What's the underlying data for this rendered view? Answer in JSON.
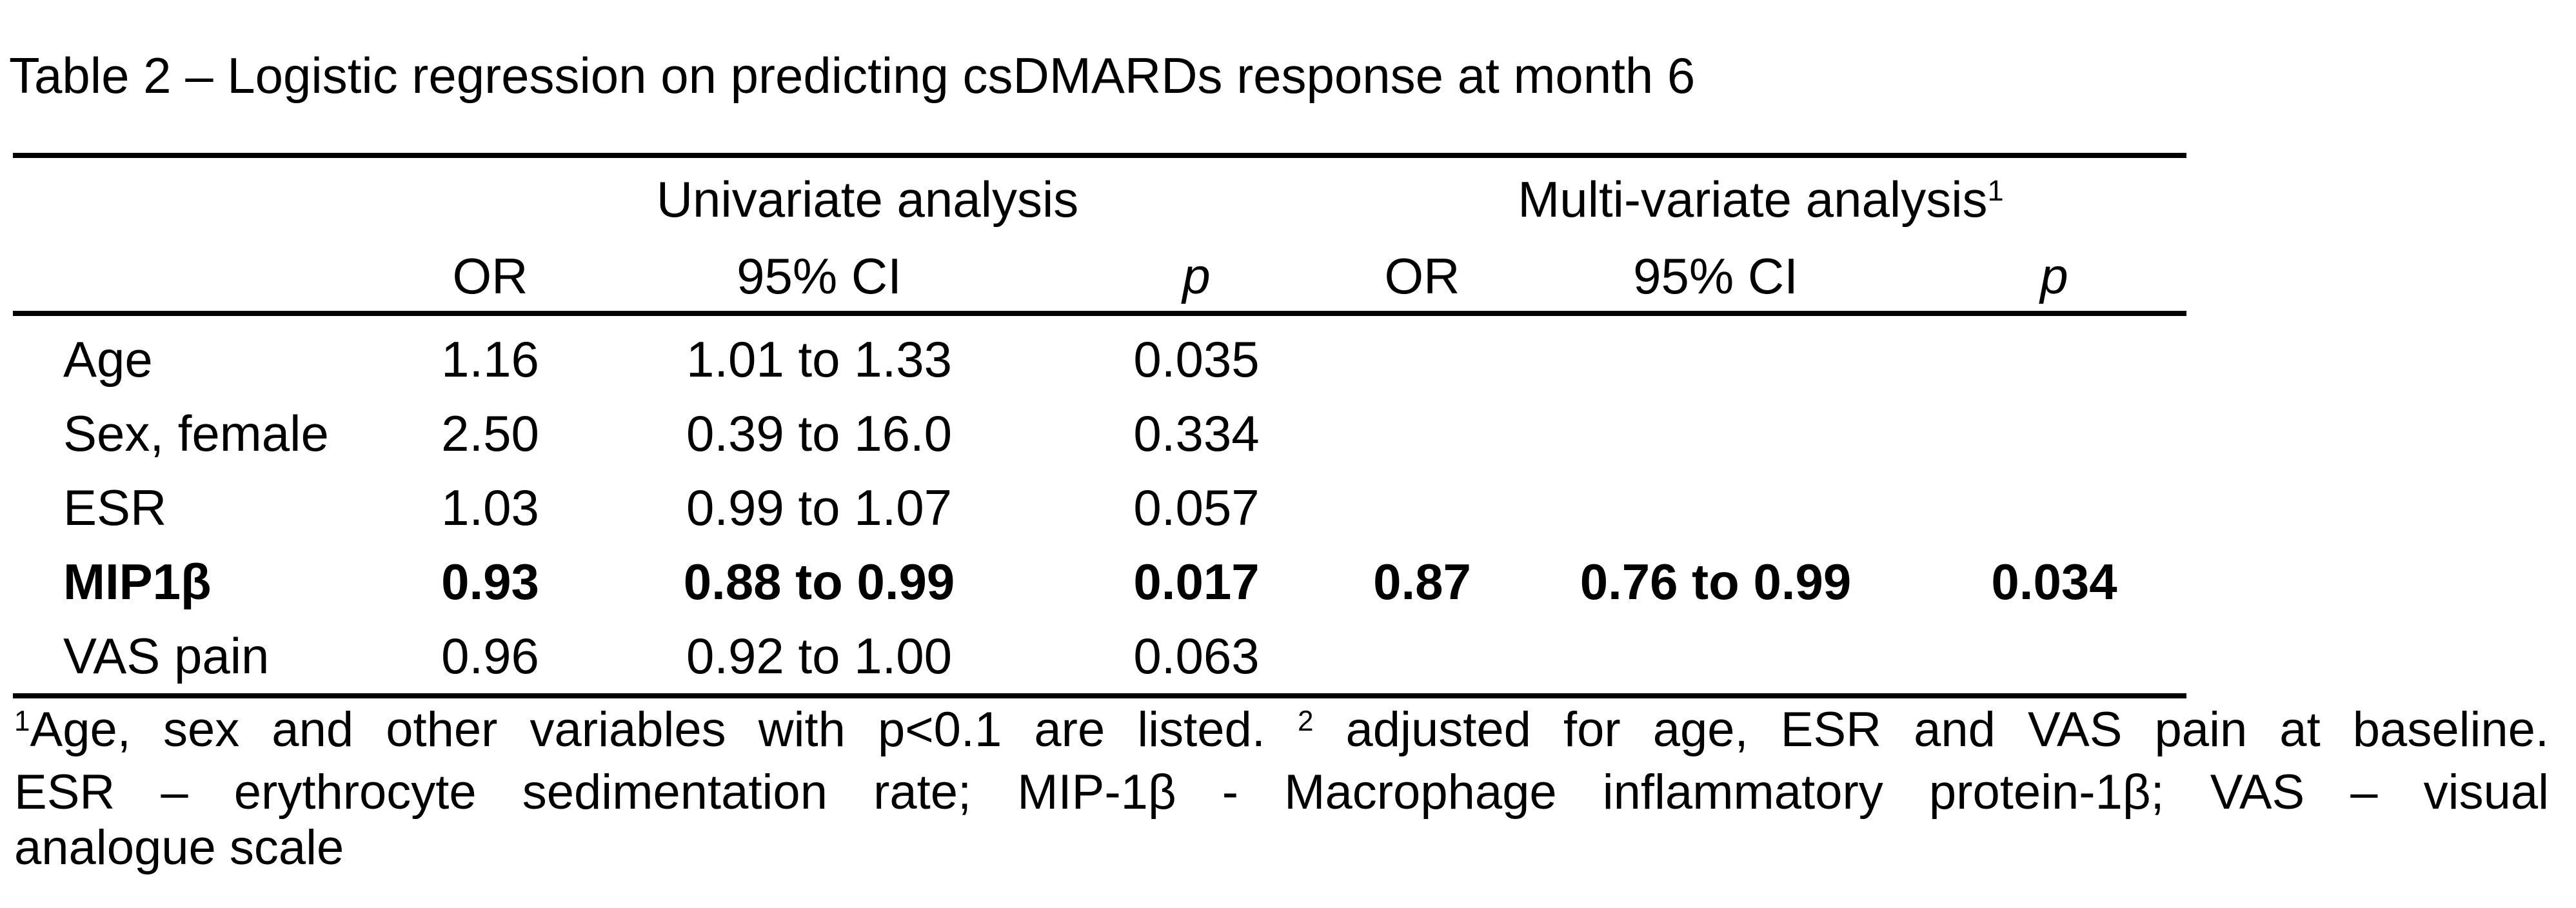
{
  "title": "Table 2 – Logistic regression on predicting csDMARDs response at month 6",
  "table": {
    "group_headers": {
      "univariate": "Univariate analysis",
      "multivariate": "Multi-variate analysis",
      "multivariate_sup": "1"
    },
    "columns": {
      "or": "OR",
      "ci": "95% CI",
      "p": "p"
    },
    "rows": [
      {
        "label": "Age",
        "u_or": "1.16",
        "u_ci": "1.01 to 1.33",
        "u_p": "0.035",
        "m_or": "",
        "m_ci": "",
        "m_p": ""
      },
      {
        "label": "Sex, female",
        "u_or": "2.50",
        "u_ci": "0.39 to 16.0",
        "u_p": "0.334",
        "m_or": "",
        "m_ci": "",
        "m_p": ""
      },
      {
        "label": "ESR",
        "u_or": "1.03",
        "u_ci": "0.99 to 1.07",
        "u_p": "0.057",
        "m_or": "",
        "m_ci": "",
        "m_p": ""
      },
      {
        "label": "MIP1β",
        "u_or": "0.93",
        "u_ci": "0.88 to 0.99",
        "u_p": "0.017",
        "m_or": "0.87",
        "m_ci": "0.76 to 0.99",
        "m_p": "0.034"
      },
      {
        "label": "VAS pain",
        "u_or": "0.96",
        "u_ci": "0.92 to 1.00",
        "u_p": "0.063",
        "m_or": "",
        "m_ci": "",
        "m_p": ""
      }
    ]
  },
  "footnote": {
    "line1_sup1": "1",
    "line1_part1": "Age, sex and other variables with p<0.1 are listed. ",
    "line1_sup2": "2",
    "line1_part2": " adjusted for age, ESR and VAS pain at baseline.",
    "line2": "ESR – erythrocyte sedimentation rate; MIP-1β - Macrophage inflammatory protein-1β; VAS – visual",
    "line3": "analogue scale"
  },
  "colors": {
    "text": "#000000",
    "background": "#ffffff",
    "rule": "#000000"
  }
}
